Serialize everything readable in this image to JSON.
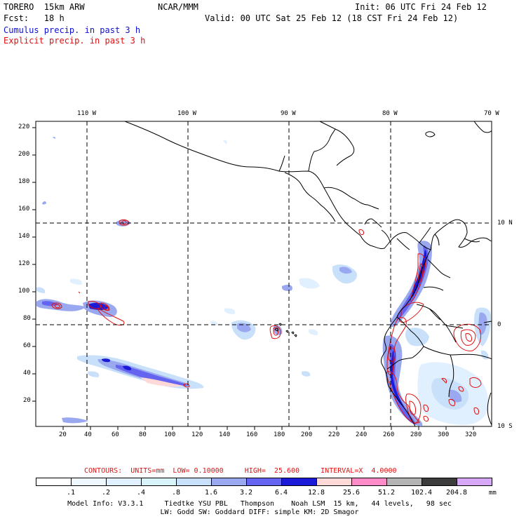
{
  "header": {
    "model": "TORERO  15km ARW",
    "org": "NCAR/MMM",
    "init": "Init: 06 UTC Fri 24 Feb 12",
    "fcst": "Fcst:   18 h",
    "valid": "Valid: 00 UTC Sat 25 Feb 12 (18 CST Fri 24 Feb 12)",
    "field1": "Cumulus precip. in past 3 h",
    "field2": "Explicit precip. in past 3 h"
  },
  "map": {
    "lon_labels": [
      "110 W",
      "100 W",
      "90 W",
      "80 W",
      "70 W"
    ],
    "lat_labels": [
      "10 N",
      "0",
      "10 S"
    ],
    "y_ticks": [
      "220",
      "200",
      "180",
      "160",
      "140",
      "120",
      "100",
      "80",
      "60",
      "40",
      "20"
    ],
    "x_ticks": [
      "20",
      "40",
      "60",
      "80",
      "100",
      "120",
      "140",
      "160",
      "180",
      "200",
      "220",
      "240",
      "260",
      "280",
      "300",
      "320"
    ]
  },
  "contour_info": {
    "text": "CONTOURS:  UNITS=mm  LOW= 0.10000     HIGH=  25.600     INTERVAL=X  4.0000"
  },
  "colorbar": {
    "labels": [
      ".1",
      ".2",
      ".4",
      ".8",
      "1.6",
      "3.2",
      "6.4",
      "12.8",
      "25.6",
      "51.2",
      "102.4",
      "204.8"
    ],
    "unit": "mm",
    "colors": [
      "#ffffff",
      "#f0f8ff",
      "#e0f0ff",
      "#d8f4fa",
      "#c8e0fa",
      "#9aa8f0",
      "#6464f0",
      "#1a1ad8",
      "#ffd8d8",
      "#ff8cc8",
      "#b4b4b4",
      "#3c3c3c",
      "#d8a8f8"
    ]
  },
  "footer": {
    "line1": "Model Info: V3.3.1     Tiedtke YSU PBL   Thompson    Noah LSM  15 km,   44 levels,   98 sec",
    "line2": "LW: Godd SW: Goddard DIFF: simple KM: 2D Smagor"
  }
}
